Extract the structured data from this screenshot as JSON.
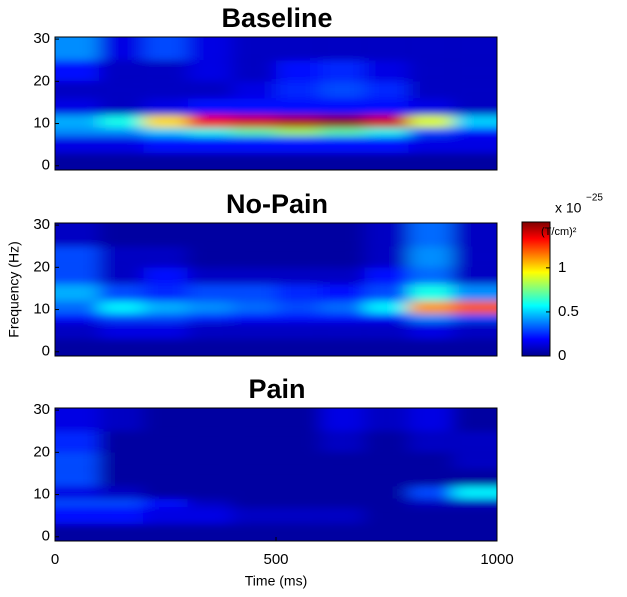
{
  "chart_data": [
    {
      "type": "heatmap",
      "title": "Baseline",
      "x_edges": [
        0,
        100,
        200,
        300,
        400,
        500,
        600,
        700,
        800,
        900,
        1000
      ],
      "y_edges": [
        -1,
        3,
        7,
        9,
        12,
        16,
        20,
        25,
        30.5
      ],
      "xlim": [
        0,
        1000
      ],
      "ylim": [
        -1,
        30.5
      ],
      "yticks": [
        0,
        10,
        20,
        30
      ],
      "clim": [
        0,
        1.52
      ],
      "values": [
        [
          0.05,
          0.05,
          0.05,
          0.05,
          0.05,
          0.05,
          0.05,
          0.05,
          0.05,
          0.05
        ],
        [
          0.15,
          0.15,
          0.2,
          0.2,
          0.2,
          0.2,
          0.2,
          0.2,
          0.15,
          0.15
        ],
        [
          0.4,
          0.4,
          0.5,
          0.6,
          0.7,
          0.8,
          0.7,
          0.6,
          0.3,
          0.2
        ],
        [
          0.45,
          0.6,
          1.0,
          1.35,
          1.4,
          1.45,
          1.5,
          1.4,
          0.9,
          0.5
        ],
        [
          0.15,
          0.1,
          0.15,
          0.2,
          0.2,
          0.2,
          0.2,
          0.2,
          0.15,
          0.1
        ],
        [
          0.1,
          0.1,
          0.1,
          0.1,
          0.15,
          0.25,
          0.3,
          0.25,
          0.1,
          0.1
        ],
        [
          0.2,
          0.1,
          0.1,
          0.15,
          0.1,
          0.2,
          0.25,
          0.15,
          0.1,
          0.1
        ],
        [
          0.4,
          0.15,
          0.3,
          0.15,
          0.1,
          0.1,
          0.1,
          0.1,
          0.1,
          0.1
        ]
      ]
    },
    {
      "type": "heatmap",
      "title": "No-Pain",
      "ylabel": "Frequency (Hz)",
      "x_edges": [
        0,
        100,
        200,
        300,
        400,
        500,
        600,
        700,
        800,
        900,
        1000
      ],
      "y_edges": [
        -1,
        3,
        7,
        9,
        12,
        16,
        20,
        25,
        30.5
      ],
      "xlim": [
        0,
        1000
      ],
      "ylim": [
        -1,
        30.5
      ],
      "yticks": [
        0,
        10,
        20,
        30
      ],
      "clim": [
        0,
        1.52
      ],
      "colorbar": {
        "scale_base": "x 10",
        "scale_exponent": "−25",
        "label": "(T/cm)²",
        "ticks": [
          0,
          0.5,
          1
        ]
      },
      "values": [
        [
          0.05,
          0.05,
          0.05,
          0.05,
          0.05,
          0.05,
          0.05,
          0.05,
          0.05,
          0.05
        ],
        [
          0.1,
          0.15,
          0.15,
          0.1,
          0.1,
          0.1,
          0.1,
          0.1,
          0.15,
          0.1
        ],
        [
          0.2,
          0.3,
          0.3,
          0.25,
          0.2,
          0.2,
          0.2,
          0.2,
          0.4,
          0.3
        ],
        [
          0.35,
          0.55,
          0.45,
          0.4,
          0.35,
          0.3,
          0.35,
          0.55,
          1.1,
          1.2
        ],
        [
          0.45,
          0.3,
          0.25,
          0.3,
          0.3,
          0.25,
          0.2,
          0.3,
          0.6,
          0.4
        ],
        [
          0.3,
          0.1,
          0.2,
          0.1,
          0.1,
          0.1,
          0.1,
          0.2,
          0.35,
          0.1
        ],
        [
          0.3,
          0.1,
          0.1,
          0.05,
          0.05,
          0.05,
          0.05,
          0.1,
          0.4,
          0.1
        ],
        [
          0.1,
          0.05,
          0.05,
          0.05,
          0.05,
          0.05,
          0.05,
          0.1,
          0.35,
          0.1
        ]
      ]
    },
    {
      "type": "heatmap",
      "title": "Pain",
      "xlabel": "Time (ms)",
      "x_edges": [
        0,
        100,
        200,
        300,
        400,
        500,
        600,
        700,
        800,
        900,
        1000
      ],
      "y_edges": [
        -1,
        3,
        7,
        9,
        12,
        16,
        20,
        25,
        30.5
      ],
      "xlim": [
        0,
        1000
      ],
      "xticks": [
        0,
        500,
        1000
      ],
      "ylim": [
        -1,
        30.5
      ],
      "yticks": [
        0,
        10,
        20,
        30
      ],
      "clim": [
        0,
        1.52
      ],
      "values": [
        [
          0.05,
          0.05,
          0.05,
          0.05,
          0.05,
          0.05,
          0.05,
          0.05,
          0.05,
          0.05
        ],
        [
          0.2,
          0.2,
          0.15,
          0.15,
          0.1,
          0.1,
          0.1,
          0.05,
          0.05,
          0.05
        ],
        [
          0.3,
          0.3,
          0.2,
          0.1,
          0.05,
          0.05,
          0.05,
          0.05,
          0.1,
          0.1
        ],
        [
          0.15,
          0.1,
          0.05,
          0.05,
          0.05,
          0.05,
          0.05,
          0.05,
          0.3,
          0.55
        ],
        [
          0.3,
          0.05,
          0.05,
          0.05,
          0.05,
          0.05,
          0.05,
          0.05,
          0.05,
          0.05
        ],
        [
          0.3,
          0.05,
          0.05,
          0.05,
          0.05,
          0.05,
          0.05,
          0.05,
          0.05,
          0.1
        ],
        [
          0.25,
          0.05,
          0.05,
          0.05,
          0.05,
          0.05,
          0.1,
          0.05,
          0.1,
          0.1
        ],
        [
          0.15,
          0.1,
          0.05,
          0.05,
          0.05,
          0.05,
          0.15,
          0.1,
          0.15,
          0.05
        ]
      ]
    }
  ]
}
